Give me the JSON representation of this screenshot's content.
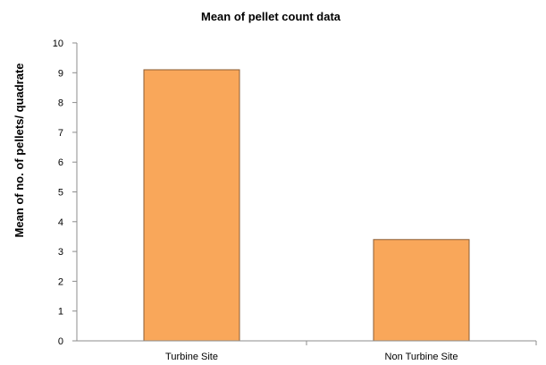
{
  "chart_data": {
    "type": "bar",
    "title": "Mean of pellet count data",
    "xlabel": "",
    "ylabel": "Mean of no. of pellets/ quadrate",
    "categories": [
      "Turbine Site",
      "Non Turbine Site"
    ],
    "values": [
      9.1,
      3.4
    ],
    "ylim": [
      0,
      10
    ],
    "yticks": [
      0,
      1,
      2,
      3,
      4,
      5,
      6,
      7,
      8,
      9,
      10
    ],
    "grid": false,
    "legend": "none",
    "bar_color": "#F9A75A",
    "bar_edge_color": "#8B5E34"
  }
}
